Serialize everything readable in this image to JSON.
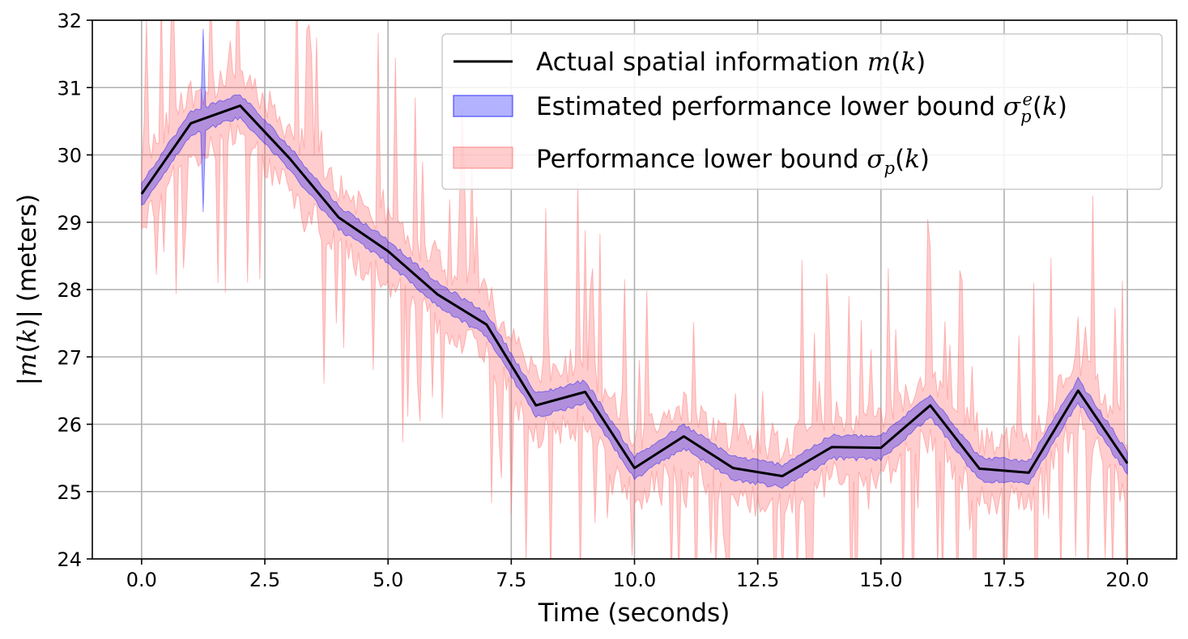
{
  "chart_data": {
    "type": "line",
    "xlabel": "Time (seconds)",
    "ylabel_parts": [
      "|",
      "m",
      "(",
      "k",
      ")| (meters)"
    ],
    "xlim": [
      -1,
      21
    ],
    "ylim": [
      24,
      32
    ],
    "grid": true,
    "legend_placement": "top-right",
    "x_ticks": [
      0.0,
      2.5,
      5.0,
      7.5,
      10.0,
      12.5,
      15.0,
      17.5,
      20.0
    ],
    "x_tick_labels": [
      "0.0",
      "2.5",
      "5.0",
      "7.5",
      "10.0",
      "12.5",
      "15.0",
      "17.5",
      "20.0"
    ],
    "y_ticks": [
      24,
      25,
      26,
      27,
      28,
      29,
      30,
      31,
      32
    ],
    "y_tick_labels": [
      "24",
      "25",
      "26",
      "27",
      "28",
      "29",
      "30",
      "31",
      "32"
    ],
    "series": [
      {
        "legend_parts": [
          "Actual spatial information ",
          "m",
          "(",
          "k",
          ")"
        ],
        "kind": "line",
        "color": "#000000",
        "x": [
          0,
          1,
          2,
          3,
          4,
          5,
          6,
          7,
          8,
          9,
          10,
          11,
          12,
          13,
          14,
          15,
          16,
          17,
          18,
          19,
          20
        ],
        "y": [
          29.42,
          30.47,
          30.73,
          29.95,
          29.07,
          28.57,
          27.93,
          27.48,
          26.28,
          26.48,
          25.35,
          25.82,
          25.35,
          25.23,
          25.66,
          25.65,
          26.28,
          25.34,
          25.28,
          26.5,
          25.42
        ]
      },
      {
        "legend_parts": [
          "Estimated performance lower bound ",
          "σ",
          "p",
          "e",
          "(",
          "k",
          ")"
        ],
        "kind": "band",
        "color": "#0000ff",
        "band_half_width": 0.14,
        "spikes": [
          {
            "x": 1.25,
            "high": 31.87,
            "low": 29.15
          }
        ]
      },
      {
        "legend_parts": [
          "Performance lower bound ",
          "σ",
          "p",
          "(",
          "k",
          ")"
        ],
        "kind": "band",
        "color": "#ff6f6f",
        "band_half_width": 0.2
      }
    ]
  }
}
